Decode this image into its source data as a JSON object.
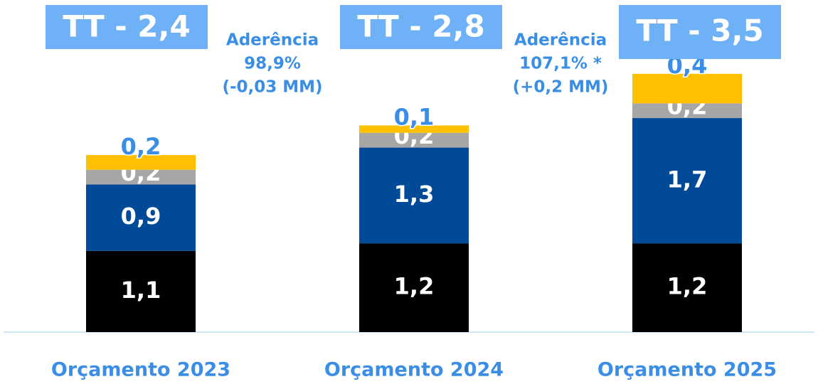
{
  "chart_data": {
    "type": "stacked_bar",
    "categories": [
      "Orçamento 2023",
      "Orçamento 2024",
      "Orçamento 2025"
    ],
    "series": [
      {
        "color": "#000000",
        "values": [
          1.1,
          1.2,
          1.2
        ],
        "value_labels": [
          "1,1",
          "1,2",
          "1,2"
        ]
      },
      {
        "color": "#004a98",
        "values": [
          0.9,
          1.3,
          1.7
        ],
        "value_labels": [
          "0,9",
          "1,3",
          "1,7"
        ]
      },
      {
        "color": "#a6a6a6",
        "values": [
          0.2,
          0.2,
          0.2
        ],
        "value_labels": [
          "0,2",
          "0,2",
          "0,2"
        ]
      },
      {
        "color": "#ffc000",
        "values": [
          0.2,
          0.1,
          0.4
        ],
        "value_labels": [
          "0,2",
          "0,1",
          "0,4"
        ]
      }
    ],
    "total_labels": [
      "TT - 2,4",
      "TT - 2,8",
      "TT - 3,5"
    ],
    "annotations": [
      [
        "Aderência",
        "98,9%",
        "(-0,03 MM)"
      ],
      [
        "Aderência",
        "107,1% *",
        "(+0,2 MM)"
      ]
    ],
    "ylim": [
      0,
      4.5
    ]
  }
}
